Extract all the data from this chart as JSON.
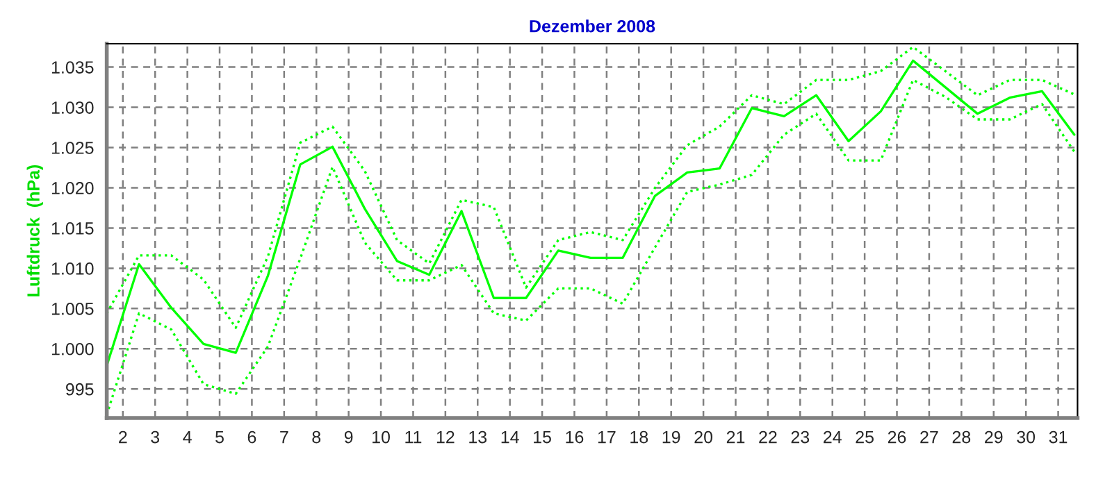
{
  "chart_data": {
    "type": "line",
    "title": "Dezember 2008",
    "ylabel": "Luftdruck  (hPa)",
    "x": [
      1.5,
      2.5,
      3.5,
      4.5,
      5.5,
      6.5,
      7.5,
      8.5,
      9.5,
      10.5,
      11.5,
      12.5,
      13.5,
      14.5,
      15.5,
      16.5,
      17.5,
      18.5,
      19.5,
      20.5,
      21.5,
      22.5,
      23.5,
      24.5,
      25.5,
      26.5,
      27.5,
      28.5,
      29.5,
      30.5,
      31.5
    ],
    "series": [
      {
        "color": "#00ff00",
        "line_style": "dotted",
        "values": [
          1004.4,
          1011.6,
          1011.6,
          1008.6,
          1002.6,
          1011.5,
          1025.6,
          1027.6,
          1022.1,
          1013.5,
          1010.6,
          1018.5,
          1017.6,
          1007.6,
          1013.5,
          1014.5,
          1013.5,
          1020.0,
          1025.3,
          1027.6,
          1031.5,
          1030.4,
          1033.4,
          1033.4,
          1034.5,
          1037.5,
          1034.5,
          1031.5,
          1033.4,
          1033.4,
          1031.6
        ]
      },
      {
        "color": "#00ff00",
        "line_style": "solid",
        "values": [
          997.9,
          1010.5,
          1005.1,
          1000.6,
          999.5,
          1009.1,
          1022.9,
          1025.1,
          1017.4,
          1010.9,
          1009.2,
          1017.1,
          1006.3,
          1006.3,
          1012.2,
          1011.3,
          1011.3,
          1019.0,
          1021.9,
          1022.4,
          1029.9,
          1028.9,
          1031.5,
          1025.8,
          1029.5,
          1035.8,
          1032.5,
          1029.2,
          1031.2,
          1032.0,
          1026.6
        ]
      },
      {
        "color": "#00ff00",
        "line_style": "dotted",
        "values": [
          991.8,
          1004.4,
          1002.4,
          995.6,
          994.4,
          1000.3,
          1011.2,
          1022.6,
          1013.2,
          1008.5,
          1008.5,
          1010.4,
          1004.4,
          1003.5,
          1007.5,
          1007.5,
          1005.6,
          1012.6,
          1019.5,
          1020.4,
          1021.6,
          1026.6,
          1029.2,
          1023.4,
          1023.4,
          1033.4,
          1031.3,
          1028.5,
          1028.5,
          1030.4,
          1024.5
        ]
      }
    ],
    "xlim": [
      1.5,
      31.6
    ],
    "xticks": [
      2,
      3,
      4,
      5,
      6,
      7,
      8,
      9,
      10,
      11,
      12,
      13,
      14,
      15,
      16,
      17,
      18,
      19,
      20,
      21,
      22,
      23,
      24,
      25,
      26,
      27,
      28,
      29,
      30,
      31
    ],
    "ylim": [
      991.4,
      1037.9
    ],
    "yticks": [
      {
        "value": 995,
        "label": "995"
      },
      {
        "value": 1000,
        "label": "1.000"
      },
      {
        "value": 1005,
        "label": "1.005"
      },
      {
        "value": 1010,
        "label": "1.010"
      },
      {
        "value": 1015,
        "label": "1.015"
      },
      {
        "value": 1020,
        "label": "1.020"
      },
      {
        "value": 1025,
        "label": "1.025"
      },
      {
        "value": 1030,
        "label": "1.030"
      },
      {
        "value": 1035,
        "label": "1.035"
      }
    ],
    "grid": true
  }
}
